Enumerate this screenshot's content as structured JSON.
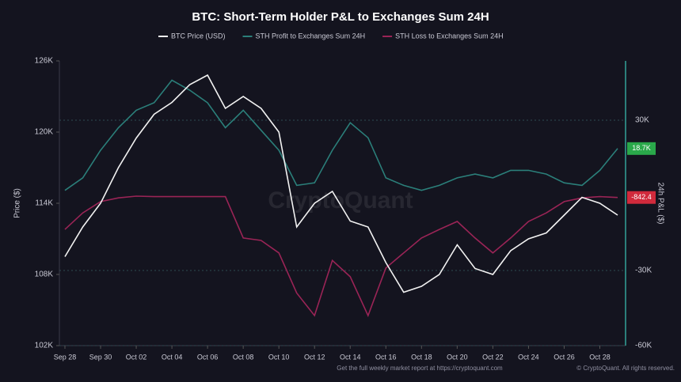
{
  "chart_data": {
    "type": "line",
    "title": "BTC: Short-Term Holder P&L to Exchanges Sum 24H",
    "categories": [
      "Sep 28",
      null,
      "Sep 30",
      null,
      "Oct 02",
      null,
      "Oct 04",
      null,
      "Oct 06",
      null,
      "Oct 08",
      null,
      "Oct 10",
      null,
      "Oct 12",
      null,
      "Oct 14",
      null,
      "Oct 16",
      null,
      "Oct 18",
      null,
      "Oct 20",
      null,
      "Oct 22",
      null,
      "Oct 24",
      null,
      "Oct 26",
      null,
      "Oct 28",
      null
    ],
    "series": [
      {
        "name": "BTC Price (USD)",
        "color": "#f2f2f2",
        "axis": "y",
        "values": [
          109500,
          112000,
          114000,
          117000,
          119500,
          121500,
          122500,
          124000,
          124800,
          122000,
          123000,
          122000,
          120000,
          112000,
          114000,
          115000,
          112500,
          112000,
          109000,
          106500,
          107000,
          108000,
          110500,
          108500,
          108000,
          110000,
          111000,
          111500,
          113000,
          114500,
          114000,
          113000
        ]
      },
      {
        "name": "STH Profit to Exchanges Sum 24H",
        "color": "#2b7f7a",
        "axis": "y2",
        "values": [
          2000,
          7000,
          18000,
          27000,
          34000,
          37000,
          46000,
          42000,
          37000,
          27000,
          34000,
          26000,
          18000,
          4000,
          5000,
          18000,
          29000,
          23000,
          7000,
          4000,
          2000,
          4000,
          7000,
          8500,
          7000,
          10000,
          10000,
          8500,
          5000,
          4000,
          10000,
          18700
        ],
        "last_label": "18.7K",
        "badge_color": "#2aa84a"
      },
      {
        "name": "STH Loss to Exchanges Sum 24H",
        "color": "#9a2456",
        "axis": "y2",
        "values": [
          -13600,
          -7000,
          -2500,
          -1000,
          -300,
          -500,
          -500,
          -500,
          -500,
          -500,
          -17000,
          -18000,
          -23000,
          -39000,
          -48000,
          -26000,
          -32500,
          -48000,
          -29000,
          -23000,
          -17000,
          -13600,
          -10400,
          -17000,
          -23000,
          -17000,
          -10400,
          -7000,
          -2500,
          -1000,
          -500,
          -842.4
        ],
        "last_label": "-842.4",
        "badge_color": "#d12a3c"
      }
    ],
    "ylabel": "Price ($)",
    "y2label": "24h P&L ($)",
    "ylim": [
      102000,
      126000
    ],
    "yticks": [
      {
        "value": 102000,
        "label": "102K"
      },
      {
        "value": 108000,
        "label": "108K"
      },
      {
        "value": 114000,
        "label": "114K"
      },
      {
        "value": 120000,
        "label": "120K"
      },
      {
        "value": 126000,
        "label": "126K"
      }
    ],
    "y2lim": [
      -60000,
      53700
    ],
    "y2ticks": [
      {
        "value": -60000,
        "label": "-60K"
      },
      {
        "value": -30000,
        "label": "-30K"
      },
      {
        "value": 30000,
        "label": "30K"
      }
    ],
    "grid": true,
    "legend": "top",
    "watermark": "CryptoQuant",
    "footer": "Get the full weekly market report at https://cryptoquant.com",
    "copyright": "© CryptoQuant. All rights reserved."
  }
}
